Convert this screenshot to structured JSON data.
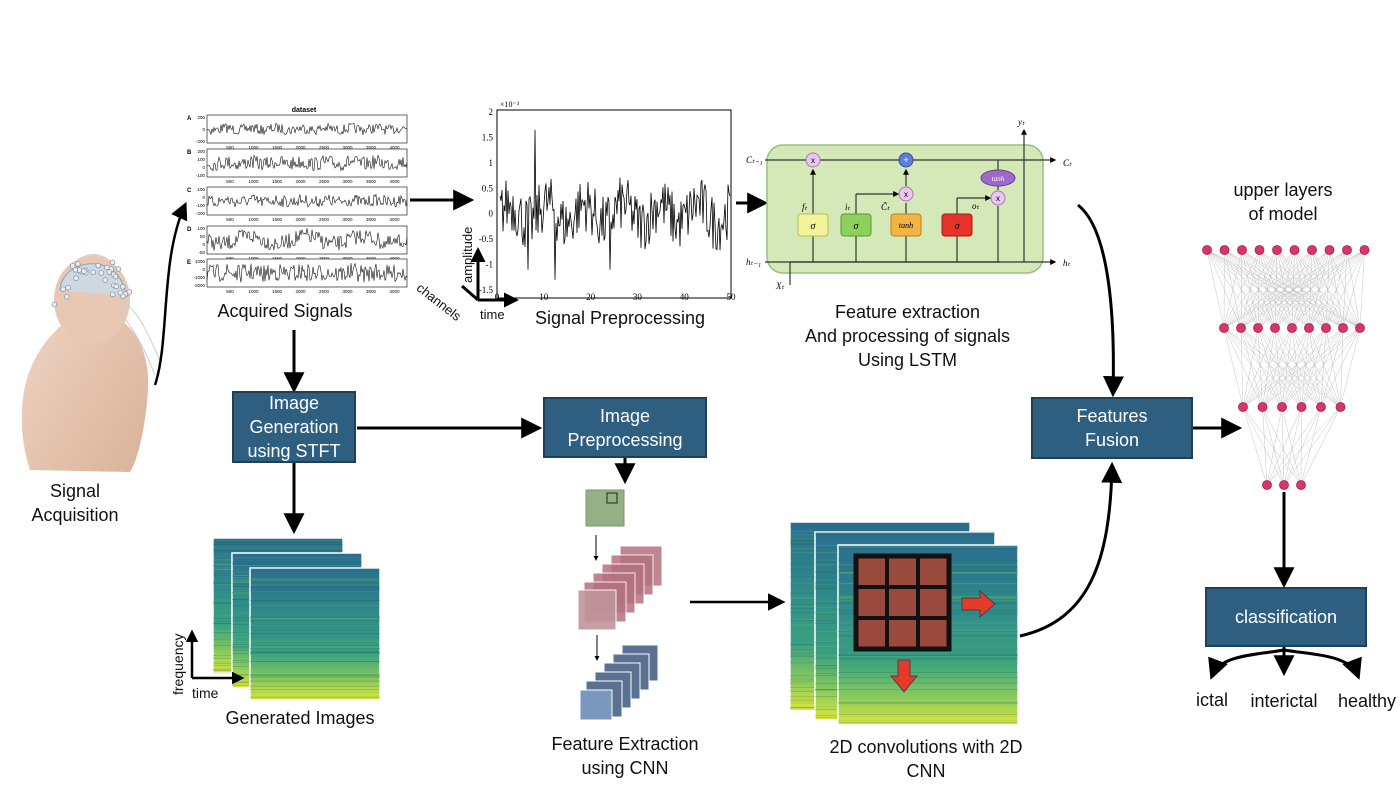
{
  "stages": {
    "acquisition": {
      "line1": "Signal",
      "line2": "Acquisition"
    },
    "acquired": "Acquired Signals",
    "preprocessing": "Signal Preprocessing",
    "lstm": {
      "line1": "Feature extraction",
      "line2": "And processing of signals",
      "line3": "Using LSTM"
    },
    "stft_box": {
      "line1": "Image",
      "line2": "Generation",
      "line3": "using STFT"
    },
    "img_pre_box": {
      "line1": "Image",
      "line2": "Preprocessing"
    },
    "fusion_box": {
      "line1": "Features",
      "line2": "Fusion"
    },
    "generated": "Generated Images",
    "cnn_extract": {
      "line1": "Feature Extraction",
      "line2": "using CNN"
    },
    "conv2d": {
      "line1": "2D convolutions with 2D",
      "line2": "CNN"
    },
    "upper": {
      "line1": "upper layers",
      "line2": "of model"
    },
    "classification_box": "classification"
  },
  "classes": [
    "ictal",
    "interictal",
    "healthy"
  ],
  "axes": {
    "amplitude": "amplitude",
    "channels": "channels",
    "time": "time",
    "frequency": "frequency",
    "img_time": "time"
  },
  "dataset_plot": {
    "title": "dataset",
    "rows": [
      "A",
      "B",
      "C",
      "D",
      "E"
    ],
    "xticks": [
      "500",
      "1000",
      "1500",
      "2000",
      "2500",
      "3000",
      "3500",
      "4000"
    ],
    "yticks": [
      [
        "200",
        "0",
        "-200"
      ],
      [
        "200",
        "100",
        "0",
        "-100"
      ],
      [
        "100",
        "0",
        "-100",
        "-200"
      ],
      [
        "100",
        "50",
        "0",
        "-50"
      ],
      [
        "1000",
        "0",
        "-1000",
        "-2000"
      ]
    ]
  },
  "pre_plot": {
    "exponent": "×10⁻³",
    "yticks": [
      "2",
      "1.5",
      "1",
      "0.5",
      "0",
      "-0.5",
      "-1",
      "-1.5"
    ],
    "xticks": [
      "0",
      "10",
      "20",
      "30",
      "40",
      "50"
    ]
  },
  "lstm_cell": {
    "c_prev": "Cₜ₋₁",
    "c_t": "Cₜ",
    "h_prev": "hₜ₋₁",
    "h_t": "hₜ",
    "x_t": "Xₜ",
    "y_t": "yₜ",
    "f_t": "fₜ",
    "i_t": "iₜ",
    "c_tilde": "C̃ₜ",
    "o_t": "oₜ",
    "sigma": "σ",
    "tanh": "tanh",
    "mult": "x",
    "plus": "+"
  },
  "colors": {
    "box": "#2e5f80",
    "lstm_bg": "#d4e8b8",
    "node": "#d9346e",
    "arrow_red": "#e53a2a"
  }
}
